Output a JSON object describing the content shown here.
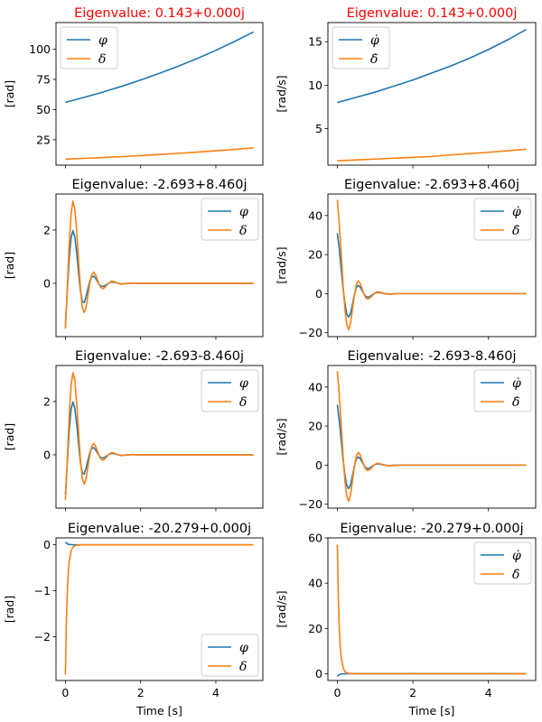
{
  "chart_data": [
    {
      "type": "line",
      "title": "Eigenvalue: 0.143+0.000j",
      "title_color": "#ff0000",
      "ylabel": "[rad]",
      "xlabel": "",
      "xlim": [
        -0.25,
        5.25
      ],
      "ylim": [
        4,
        122
      ],
      "xticks": [
        0,
        2,
        4
      ],
      "xtick_labels_shown": false,
      "yticks": [
        25,
        50,
        75,
        100
      ],
      "legend_position": "upper-left",
      "x": [
        0,
        0.5,
        1,
        1.5,
        2,
        2.5,
        3,
        3.5,
        4,
        4.5,
        5
      ],
      "series": [
        {
          "name": "φ",
          "color": "#1f77b4",
          "values": [
            56,
            60.1,
            64.5,
            69.3,
            74.5,
            80,
            85.9,
            92.2,
            99.0,
            106.4,
            114.2
          ]
        },
        {
          "name": "δ",
          "color": "#ff7f0e",
          "values": [
            9,
            9.6,
            10.3,
            11.1,
            11.9,
            12.8,
            13.8,
            14.8,
            15.9,
            17.0,
            18.3
          ]
        }
      ]
    },
    {
      "type": "line",
      "title": "Eigenvalue: 0.143+0.000j",
      "title_color": "#ff0000",
      "ylabel": "[rad/s]",
      "xlabel": "",
      "xlim": [
        -0.25,
        5.25
      ],
      "ylim": [
        0.8,
        17.2
      ],
      "xticks": [
        0,
        2,
        4
      ],
      "xtick_labels_shown": false,
      "yticks": [
        5,
        10,
        15
      ],
      "legend_position": "upper-left",
      "x": [
        0,
        0.5,
        1,
        1.5,
        2,
        2.5,
        3,
        3.5,
        4,
        4.5,
        5
      ],
      "series": [
        {
          "name": "φ̇",
          "color": "#1f77b4",
          "values": [
            8,
            8.6,
            9.2,
            9.9,
            10.6,
            11.4,
            12.2,
            13.1,
            14.1,
            15.2,
            16.4
          ]
        },
        {
          "name": "δ̇",
          "color": "#ff7f0e",
          "values": [
            1.3,
            1.4,
            1.5,
            1.6,
            1.7,
            1.8,
            1.98,
            2.13,
            2.28,
            2.45,
            2.63
          ]
        }
      ]
    },
    {
      "type": "line",
      "title": "Eigenvalue: -2.693+8.460j",
      "title_color": "#000000",
      "ylabel": "[rad]",
      "xlabel": "",
      "xlim": [
        -0.25,
        5.25
      ],
      "ylim": [
        -2.0,
        3.35
      ],
      "xticks": [
        0,
        2,
        4
      ],
      "xtick_labels_shown": false,
      "yticks": [
        0,
        2
      ],
      "legend_position": "upper-right",
      "x": [
        0,
        0.05,
        0.1,
        0.15,
        0.2,
        0.25,
        0.3,
        0.35,
        0.4,
        0.45,
        0.5,
        0.55,
        0.6,
        0.65,
        0.7,
        0.75,
        0.8,
        0.85,
        0.9,
        0.95,
        1.0,
        1.05,
        1.1,
        1.15,
        1.2,
        1.25,
        1.3,
        1.35,
        1.4,
        1.45,
        1.5,
        1.55,
        1.6,
        1.7,
        1.8,
        1.9,
        2.0,
        2.2,
        2.5,
        3.0,
        4.0,
        5.0
      ],
      "series": [
        {
          "name": "φ",
          "color": "#1f77b4",
          "values": [
            -1.5,
            -0.3,
            0.9,
            1.7,
            1.98,
            1.75,
            1.15,
            0.4,
            -0.3,
            -0.68,
            -0.72,
            -0.5,
            -0.2,
            0.08,
            0.24,
            0.27,
            0.2,
            0.07,
            -0.04,
            -0.11,
            -0.12,
            -0.09,
            -0.04,
            0.01,
            0.04,
            0.05,
            0.04,
            0.02,
            0.0,
            -0.01,
            -0.02,
            -0.02,
            -0.01,
            0.0,
            0.01,
            0.0,
            0.0,
            0.0,
            0.0,
            0.0,
            0.0,
            0.0
          ]
        },
        {
          "name": "δ",
          "color": "#ff7f0e",
          "values": [
            -1.7,
            -0.2,
            1.4,
            2.6,
            3.08,
            2.8,
            1.95,
            0.85,
            -0.2,
            -0.9,
            -1.1,
            -0.9,
            -0.45,
            0.0,
            0.32,
            0.42,
            0.33,
            0.13,
            -0.05,
            -0.17,
            -0.2,
            -0.15,
            -0.07,
            0.01,
            0.06,
            0.08,
            0.06,
            0.03,
            0.0,
            -0.02,
            -0.03,
            -0.02,
            -0.01,
            0.0,
            0.01,
            0.0,
            0.0,
            0.0,
            0.0,
            0.0,
            0.0,
            0.0
          ]
        }
      ]
    },
    {
      "type": "line",
      "title": "Eigenvalue: -2.693+8.460j",
      "title_color": "#000000",
      "ylabel": "[rad/s]",
      "xlabel": "",
      "xlim": [
        -0.25,
        5.25
      ],
      "ylim": [
        -22,
        51
      ],
      "xticks": [
        0,
        2,
        4
      ],
      "xtick_labels_shown": false,
      "yticks": [
        -20,
        0,
        20,
        40
      ],
      "legend_position": "upper-right",
      "x": [
        0,
        0.05,
        0.1,
        0.15,
        0.2,
        0.25,
        0.3,
        0.35,
        0.4,
        0.45,
        0.5,
        0.55,
        0.6,
        0.65,
        0.7,
        0.75,
        0.8,
        0.85,
        0.9,
        0.95,
        1.0,
        1.05,
        1.1,
        1.15,
        1.2,
        1.3,
        1.4,
        1.5,
        1.6,
        1.8,
        2.0,
        2.5,
        3.0,
        4.0,
        5.0
      ],
      "series": [
        {
          "name": "φ̇",
          "color": "#1f77b4",
          "values": [
            31,
            23,
            13,
            3,
            -5,
            -10.5,
            -12,
            -10,
            -5.5,
            -0.5,
            3.0,
            4.2,
            3.5,
            1.8,
            0.0,
            -1.3,
            -1.8,
            -1.6,
            -1.0,
            -0.3,
            0.3,
            0.6,
            0.6,
            0.4,
            0.2,
            -0.1,
            -0.2,
            -0.1,
            0.0,
            0.0,
            0.0,
            0.0,
            0.0,
            0.0,
            0.0
          ]
        },
        {
          "name": "δ̇",
          "color": "#ff7f0e",
          "values": [
            48,
            36,
            21,
            5,
            -8,
            -16,
            -18.5,
            -15,
            -8,
            -1,
            4.5,
            6.5,
            5.5,
            2.8,
            0.0,
            -2.0,
            -2.8,
            -2.4,
            -1.5,
            -0.5,
            0.4,
            0.9,
            0.9,
            0.6,
            0.3,
            -0.2,
            -0.3,
            -0.2,
            0.0,
            0.0,
            0.0,
            0.0,
            0.0,
            0.0,
            0.0
          ]
        }
      ]
    },
    {
      "type": "line",
      "title": "Eigenvalue: -2.693-8.460j",
      "title_color": "#000000",
      "ylabel": "[rad]",
      "xlabel": "",
      "xlim": [
        -0.25,
        5.25
      ],
      "ylim": [
        -2.0,
        3.35
      ],
      "xticks": [
        0,
        2,
        4
      ],
      "xtick_labels_shown": false,
      "yticks": [
        0,
        2
      ],
      "legend_position": "upper-right",
      "x": [
        0,
        0.05,
        0.1,
        0.15,
        0.2,
        0.25,
        0.3,
        0.35,
        0.4,
        0.45,
        0.5,
        0.55,
        0.6,
        0.65,
        0.7,
        0.75,
        0.8,
        0.85,
        0.9,
        0.95,
        1.0,
        1.05,
        1.1,
        1.15,
        1.2,
        1.25,
        1.3,
        1.35,
        1.4,
        1.45,
        1.5,
        1.55,
        1.6,
        1.7,
        1.8,
        1.9,
        2.0,
        2.2,
        2.5,
        3.0,
        4.0,
        5.0
      ],
      "series": [
        {
          "name": "φ",
          "color": "#1f77b4",
          "values": [
            -1.5,
            -0.3,
            0.9,
            1.7,
            1.98,
            1.75,
            1.15,
            0.4,
            -0.3,
            -0.68,
            -0.72,
            -0.5,
            -0.2,
            0.08,
            0.24,
            0.27,
            0.2,
            0.07,
            -0.04,
            -0.11,
            -0.12,
            -0.09,
            -0.04,
            0.01,
            0.04,
            0.05,
            0.04,
            0.02,
            0.0,
            -0.01,
            -0.02,
            -0.02,
            -0.01,
            0.0,
            0.01,
            0.0,
            0.0,
            0.0,
            0.0,
            0.0,
            0.0,
            0.0
          ]
        },
        {
          "name": "δ",
          "color": "#ff7f0e",
          "values": [
            -1.7,
            -0.2,
            1.4,
            2.6,
            3.08,
            2.8,
            1.95,
            0.85,
            -0.2,
            -0.9,
            -1.1,
            -0.9,
            -0.45,
            0.0,
            0.32,
            0.42,
            0.33,
            0.13,
            -0.05,
            -0.17,
            -0.2,
            -0.15,
            -0.07,
            0.01,
            0.06,
            0.08,
            0.06,
            0.03,
            0.0,
            -0.02,
            -0.03,
            -0.02,
            -0.01,
            0.0,
            0.01,
            0.0,
            0.0,
            0.0,
            0.0,
            0.0,
            0.0,
            0.0
          ]
        }
      ]
    },
    {
      "type": "line",
      "title": "Eigenvalue: -2.693-8.460j",
      "title_color": "#000000",
      "ylabel": "[rad/s]",
      "xlabel": "",
      "xlim": [
        -0.25,
        5.25
      ],
      "ylim": [
        -22,
        51
      ],
      "xticks": [
        0,
        2,
        4
      ],
      "xtick_labels_shown": false,
      "yticks": [
        -20,
        0,
        20,
        40
      ],
      "legend_position": "upper-right",
      "x": [
        0,
        0.05,
        0.1,
        0.15,
        0.2,
        0.25,
        0.3,
        0.35,
        0.4,
        0.45,
        0.5,
        0.55,
        0.6,
        0.65,
        0.7,
        0.75,
        0.8,
        0.85,
        0.9,
        0.95,
        1.0,
        1.05,
        1.1,
        1.15,
        1.2,
        1.3,
        1.4,
        1.5,
        1.6,
        1.8,
        2.0,
        2.5,
        3.0,
        4.0,
        5.0
      ],
      "series": [
        {
          "name": "φ̇",
          "color": "#1f77b4",
          "values": [
            31,
            23,
            13,
            3,
            -5,
            -10.5,
            -12,
            -10,
            -5.5,
            -0.5,
            3.0,
            4.2,
            3.5,
            1.8,
            0.0,
            -1.3,
            -1.8,
            -1.6,
            -1.0,
            -0.3,
            0.3,
            0.6,
            0.6,
            0.4,
            0.2,
            -0.1,
            -0.2,
            -0.1,
            0.0,
            0.0,
            0.0,
            0.0,
            0.0,
            0.0,
            0.0
          ]
        },
        {
          "name": "δ̇",
          "color": "#ff7f0e",
          "values": [
            48,
            36,
            21,
            5,
            -8,
            -16,
            -18.5,
            -15,
            -8,
            -1,
            4.5,
            6.5,
            5.5,
            2.8,
            0.0,
            -2.0,
            -2.8,
            -2.4,
            -1.5,
            -0.5,
            0.4,
            0.9,
            0.9,
            0.6,
            0.3,
            -0.2,
            -0.3,
            -0.2,
            0.0,
            0.0,
            0.0,
            0.0,
            0.0,
            0.0,
            0.0
          ]
        }
      ]
    },
    {
      "type": "line",
      "title": "Eigenvalue: -20.279+0.000j",
      "title_color": "#000000",
      "ylabel": "[rad]",
      "xlabel": "Time [s]",
      "xlim": [
        -0.25,
        5.25
      ],
      "ylim": [
        -2.95,
        0.15
      ],
      "xticks": [
        0,
        2,
        4
      ],
      "xtick_labels_shown": true,
      "yticks": [
        -2,
        -1,
        0
      ],
      "legend_position": "lower-right",
      "x": [
        0,
        0.025,
        0.05,
        0.075,
        0.1,
        0.15,
        0.2,
        0.25,
        0.3,
        0.4,
        0.5,
        0.7,
        1.0,
        2.0,
        3.0,
        4.0,
        5.0
      ],
      "series": [
        {
          "name": "φ",
          "color": "#1f77b4",
          "values": [
            0.06,
            0.04,
            0.02,
            0.015,
            0.008,
            0.003,
            0.001,
            0.0,
            0.0,
            0.0,
            0.0,
            0.0,
            0.0,
            0.0,
            0.0,
            0.0,
            0.0
          ]
        },
        {
          "name": "δ",
          "color": "#ff7f0e",
          "values": [
            -2.82,
            -1.7,
            -1.03,
            -0.62,
            -0.37,
            -0.14,
            -0.05,
            -0.02,
            -0.01,
            0.0,
            0.0,
            0.0,
            0.0,
            0.0,
            0.0,
            0.0,
            0.0
          ]
        }
      ]
    },
    {
      "type": "line",
      "title": "Eigenvalue: -20.279+0.000j",
      "title_color": "#000000",
      "ylabel": "[rad/s]",
      "xlabel": "Time [s]",
      "xlim": [
        -0.25,
        5.25
      ],
      "ylim": [
        -3,
        60
      ],
      "xticks": [
        0,
        2,
        4
      ],
      "xtick_labels_shown": true,
      "yticks": [
        0,
        20,
        40,
        60
      ],
      "legend_position": "upper-right",
      "x": [
        0,
        0.025,
        0.05,
        0.075,
        0.1,
        0.15,
        0.2,
        0.25,
        0.3,
        0.4,
        0.5,
        0.7,
        1.0,
        2.0,
        3.0,
        4.0,
        5.0
      ],
      "series": [
        {
          "name": "φ̇",
          "color": "#1f77b4",
          "values": [
            -1.2,
            -0.7,
            -0.45,
            -0.27,
            -0.16,
            -0.06,
            -0.02,
            -0.01,
            0.0,
            0.0,
            0.0,
            0.0,
            0.0,
            0.0,
            0.0,
            0.0,
            0.0
          ]
        },
        {
          "name": "δ̇",
          "color": "#ff7f0e",
          "values": [
            57,
            34.4,
            20.8,
            12.5,
            7.5,
            2.7,
            1.0,
            0.36,
            0.13,
            0.02,
            0.0,
            0.0,
            0.0,
            0.0,
            0.0,
            0.0,
            0.0
          ]
        }
      ]
    }
  ]
}
